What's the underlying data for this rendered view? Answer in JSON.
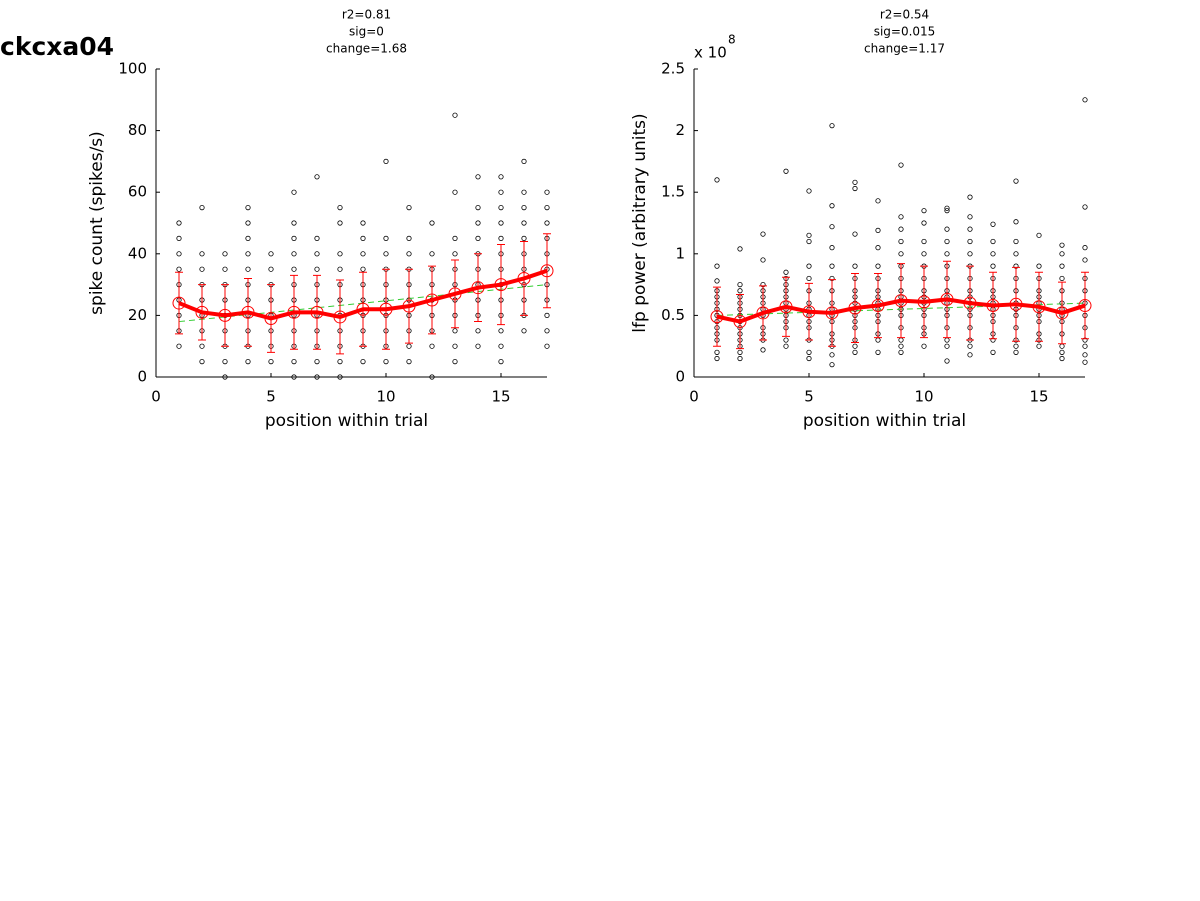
{
  "figure_title": "ckcxa04",
  "chart_data": [
    {
      "type": "scatter",
      "title": [
        "r2=0.81",
        "sig=0",
        "change=1.68"
      ],
      "xlabel": "position within trial",
      "ylabel": "spike count (spikes/s)",
      "xlim": [
        0,
        17
      ],
      "xticks": [
        0,
        5,
        10,
        15
      ],
      "ylim": [
        0,
        100
      ],
      "yticks": [
        0,
        20,
        40,
        60,
        80,
        100
      ],
      "x": [
        1,
        2,
        3,
        4,
        5,
        6,
        7,
        8,
        9,
        10,
        11,
        12,
        13,
        14,
        15,
        16,
        17
      ],
      "trials": [
        [
          10,
          15,
          20,
          25,
          30,
          35,
          40,
          45,
          50
        ],
        [
          5,
          10,
          15,
          20,
          25,
          30,
          35,
          40,
          55
        ],
        [
          0,
          5,
          10,
          15,
          20,
          25,
          30,
          35,
          40
        ],
        [
          5,
          10,
          15,
          20,
          25,
          30,
          35,
          40,
          45,
          50,
          55
        ],
        [
          5,
          10,
          15,
          20,
          25,
          30,
          35,
          40
        ],
        [
          0,
          5,
          10,
          15,
          20,
          25,
          30,
          35,
          40,
          45,
          50,
          60
        ],
        [
          0,
          5,
          10,
          15,
          20,
          25,
          30,
          35,
          40,
          45,
          65
        ],
        [
          0,
          5,
          10,
          15,
          20,
          25,
          30,
          35,
          40,
          50,
          55
        ],
        [
          5,
          10,
          15,
          20,
          25,
          30,
          35,
          40,
          45,
          50
        ],
        [
          5,
          10,
          15,
          20,
          25,
          30,
          35,
          40,
          45,
          70
        ],
        [
          5,
          10,
          15,
          20,
          25,
          30,
          35,
          40,
          45,
          55
        ],
        [
          0,
          10,
          15,
          20,
          25,
          30,
          35,
          40,
          50
        ],
        [
          5,
          10,
          15,
          20,
          25,
          30,
          35,
          40,
          45,
          60,
          85
        ],
        [
          10,
          15,
          20,
          25,
          30,
          35,
          40,
          45,
          50,
          55,
          65
        ],
        [
          5,
          10,
          15,
          20,
          25,
          30,
          35,
          40,
          45,
          50,
          55,
          60,
          65
        ],
        [
          15,
          20,
          25,
          30,
          35,
          40,
          45,
          50,
          55,
          60,
          70
        ],
        [
          10,
          15,
          20,
          25,
          30,
          35,
          40,
          45,
          50,
          55,
          60
        ]
      ],
      "means": [
        24,
        21,
        20,
        21,
        19,
        21,
        21,
        19.5,
        22,
        22,
        23,
        25,
        27,
        29,
        30,
        32,
        34.5
      ],
      "errors": [
        10,
        9,
        10,
        11,
        11,
        12,
        12,
        12,
        12,
        13,
        12,
        11,
        11,
        11,
        13,
        12,
        12
      ],
      "fit": {
        "x": [
          1,
          17
        ],
        "y": [
          18,
          30
        ]
      },
      "point_color": "#000000",
      "mean_color": "#ff0000",
      "fit_color": "#33cc33"
    },
    {
      "type": "scatter",
      "title": [
        "r2=0.54",
        "sig=0.015",
        "change=1.17"
      ],
      "xlabel": "position within trial",
      "ylabel": "lfp power (arbitrary units)",
      "axis_multiplier": {
        "base": "x 10",
        "exponent": "8"
      },
      "xlim": [
        0,
        17
      ],
      "xticks": [
        0,
        5,
        10,
        15
      ],
      "ylim": [
        0,
        2.5
      ],
      "yticks": [
        0,
        0.5,
        1,
        1.5,
        2,
        2.5
      ],
      "x": [
        1,
        2,
        3,
        4,
        5,
        6,
        7,
        8,
        9,
        10,
        11,
        12,
        13,
        14,
        15,
        16,
        17
      ],
      "trials": [
        [
          0.15,
          0.2,
          0.3,
          0.35,
          0.4,
          0.45,
          0.5,
          0.55,
          0.6,
          0.65,
          0.7,
          0.78,
          0.9,
          1.6
        ],
        [
          0.15,
          0.2,
          0.25,
          0.3,
          0.35,
          0.4,
          0.45,
          0.5,
          0.55,
          0.6,
          0.65,
          0.7,
          0.75,
          1.04
        ],
        [
          0.22,
          0.3,
          0.35,
          0.4,
          0.5,
          0.55,
          0.6,
          0.65,
          0.7,
          0.75,
          0.95,
          1.16
        ],
        [
          0.25,
          0.3,
          0.4,
          0.45,
          0.5,
          0.55,
          0.6,
          0.65,
          0.7,
          0.75,
          0.8,
          0.85,
          1.67
        ],
        [
          0.15,
          0.2,
          0.3,
          0.4,
          0.45,
          0.5,
          0.55,
          0.6,
          0.7,
          0.8,
          0.9,
          1.1,
          1.15,
          1.51
        ],
        [
          0.1,
          0.18,
          0.25,
          0.3,
          0.35,
          0.45,
          0.5,
          0.55,
          0.6,
          0.7,
          0.8,
          0.9,
          1.05,
          1.22,
          1.39,
          2.04
        ],
        [
          0.2,
          0.25,
          0.3,
          0.4,
          0.45,
          0.5,
          0.55,
          0.6,
          0.65,
          0.7,
          0.8,
          0.9,
          1.16,
          1.53,
          1.58
        ],
        [
          0.2,
          0.3,
          0.35,
          0.45,
          0.5,
          0.55,
          0.6,
          0.65,
          0.7,
          0.8,
          0.9,
          1.05,
          1.19,
          1.43
        ],
        [
          0.2,
          0.25,
          0.3,
          0.4,
          0.5,
          0.55,
          0.6,
          0.65,
          0.7,
          0.8,
          0.9,
          1.0,
          1.1,
          1.2,
          1.3,
          1.72
        ],
        [
          0.25,
          0.35,
          0.4,
          0.5,
          0.55,
          0.6,
          0.65,
          0.7,
          0.8,
          0.9,
          1.0,
          1.1,
          1.25,
          1.35
        ],
        [
          0.13,
          0.25,
          0.3,
          0.4,
          0.5,
          0.55,
          0.6,
          0.65,
          0.7,
          0.8,
          0.9,
          1.0,
          1.1,
          1.2,
          1.35,
          1.37
        ],
        [
          0.18,
          0.25,
          0.3,
          0.4,
          0.5,
          0.55,
          0.6,
          0.65,
          0.7,
          0.8,
          0.9,
          1.0,
          1.1,
          1.2,
          1.3,
          1.46
        ],
        [
          0.2,
          0.3,
          0.35,
          0.45,
          0.5,
          0.55,
          0.6,
          0.65,
          0.7,
          0.8,
          0.9,
          1.0,
          1.1,
          1.24
        ],
        [
          0.2,
          0.25,
          0.3,
          0.4,
          0.5,
          0.55,
          0.6,
          0.7,
          0.8,
          0.9,
          1.0,
          1.1,
          1.26,
          1.59
        ],
        [
          0.25,
          0.3,
          0.35,
          0.45,
          0.5,
          0.55,
          0.6,
          0.65,
          0.7,
          0.8,
          0.9,
          1.15
        ],
        [
          0.15,
          0.2,
          0.25,
          0.35,
          0.45,
          0.5,
          0.55,
          0.6,
          0.7,
          0.8,
          0.9,
          1.0,
          1.07
        ],
        [
          0.12,
          0.18,
          0.25,
          0.3,
          0.4,
          0.5,
          0.6,
          0.7,
          0.8,
          0.95,
          1.05,
          1.38,
          2.25
        ]
      ],
      "means": [
        0.49,
        0.45,
        0.52,
        0.57,
        0.53,
        0.52,
        0.56,
        0.58,
        0.62,
        0.61,
        0.63,
        0.6,
        0.58,
        0.59,
        0.57,
        0.52,
        0.58
      ],
      "errors": [
        0.24,
        0.22,
        0.22,
        0.24,
        0.23,
        0.27,
        0.28,
        0.26,
        0.3,
        0.29,
        0.31,
        0.3,
        0.27,
        0.3,
        0.28,
        0.25,
        0.27
      ],
      "fit": {
        "x": [
          1,
          17
        ],
        "y": [
          0.5,
          0.6
        ]
      },
      "point_color": "#000000",
      "mean_color": "#ff0000",
      "fit_color": "#33cc33"
    }
  ]
}
